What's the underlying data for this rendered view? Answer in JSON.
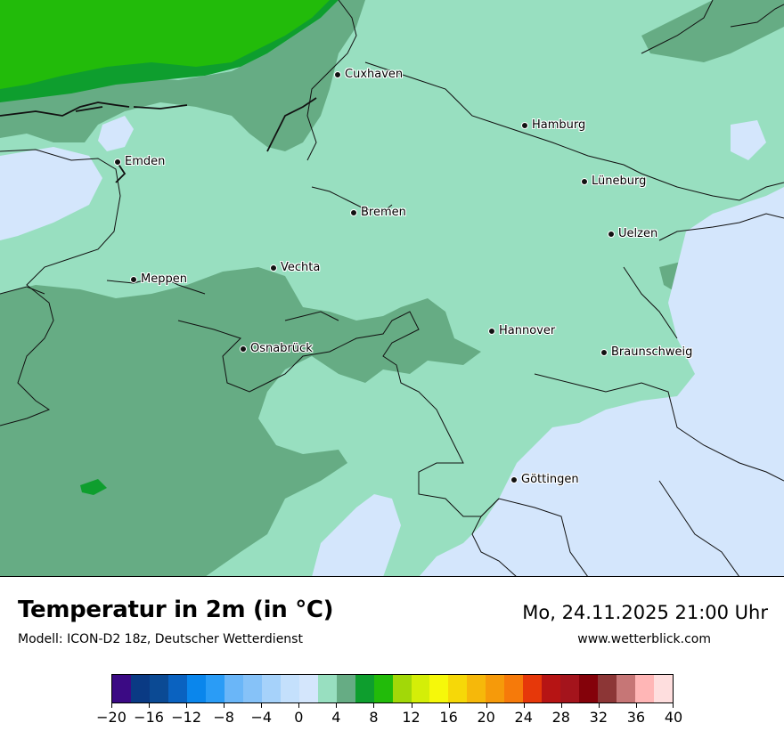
{
  "map": {
    "colors": {
      "c_0_2": "#d4e6fc",
      "c_2_4": "#98dfc0",
      "c_4_6": "#66ac84",
      "c_6_8": "#0e9e2e",
      "c_8_10": "#22bb0a",
      "border": "#111111"
    },
    "cities": [
      {
        "id": "cuxhaven",
        "name": "Cuxhaven"
      },
      {
        "id": "hamburg",
        "name": "Hamburg"
      },
      {
        "id": "emden",
        "name": "Emden"
      },
      {
        "id": "lueneburg",
        "name": "Lüneburg"
      },
      {
        "id": "bremen",
        "name": "Bremen"
      },
      {
        "id": "uelzen",
        "name": "Uelzen"
      },
      {
        "id": "vechta",
        "name": "Vechta"
      },
      {
        "id": "meppen",
        "name": "Meppen"
      },
      {
        "id": "hannover",
        "name": "Hannover"
      },
      {
        "id": "osnabrueck",
        "name": "Osnabrück"
      },
      {
        "id": "braunschweig",
        "name": "Braunschweig"
      },
      {
        "id": "goettingen",
        "name": "Göttingen"
      }
    ]
  },
  "header": {
    "title": "Temperatur in 2m (in °C)",
    "model": "Modell: ICON-D2 18z, Deutscher Wetterdienst",
    "datetime": "Mo, 24.11.2025 21:00 Uhr",
    "website": "www.wetterblick.com"
  },
  "legend": {
    "unit": "°C",
    "min": -20,
    "max": 40,
    "step": 2,
    "colors": [
      "#3b0a84",
      "#0a3a84",
      "#0b4a94",
      "#0a62c0",
      "#0a86ec",
      "#2a9cf6",
      "#6ab6f8",
      "#86c2f8",
      "#a6d2fa",
      "#c4e0fc",
      "#d4e6fc",
      "#98dfc0",
      "#66ac84",
      "#0e9e2e",
      "#22bb0a",
      "#a2d808",
      "#d4ee08",
      "#f6f80a",
      "#f6d808",
      "#f6b80a",
      "#f69a0a",
      "#f67a0a",
      "#e6380a",
      "#b61414",
      "#a4141c",
      "#84020a",
      "#8c3636",
      "#c67676",
      "#ffb6b6",
      "#fedede"
    ],
    "tick_labels": [
      "−20",
      "−16",
      "−12",
      "−8",
      "−4",
      "0",
      "4",
      "8",
      "12",
      "16",
      "20",
      "24",
      "28",
      "32",
      "36",
      "40"
    ]
  }
}
